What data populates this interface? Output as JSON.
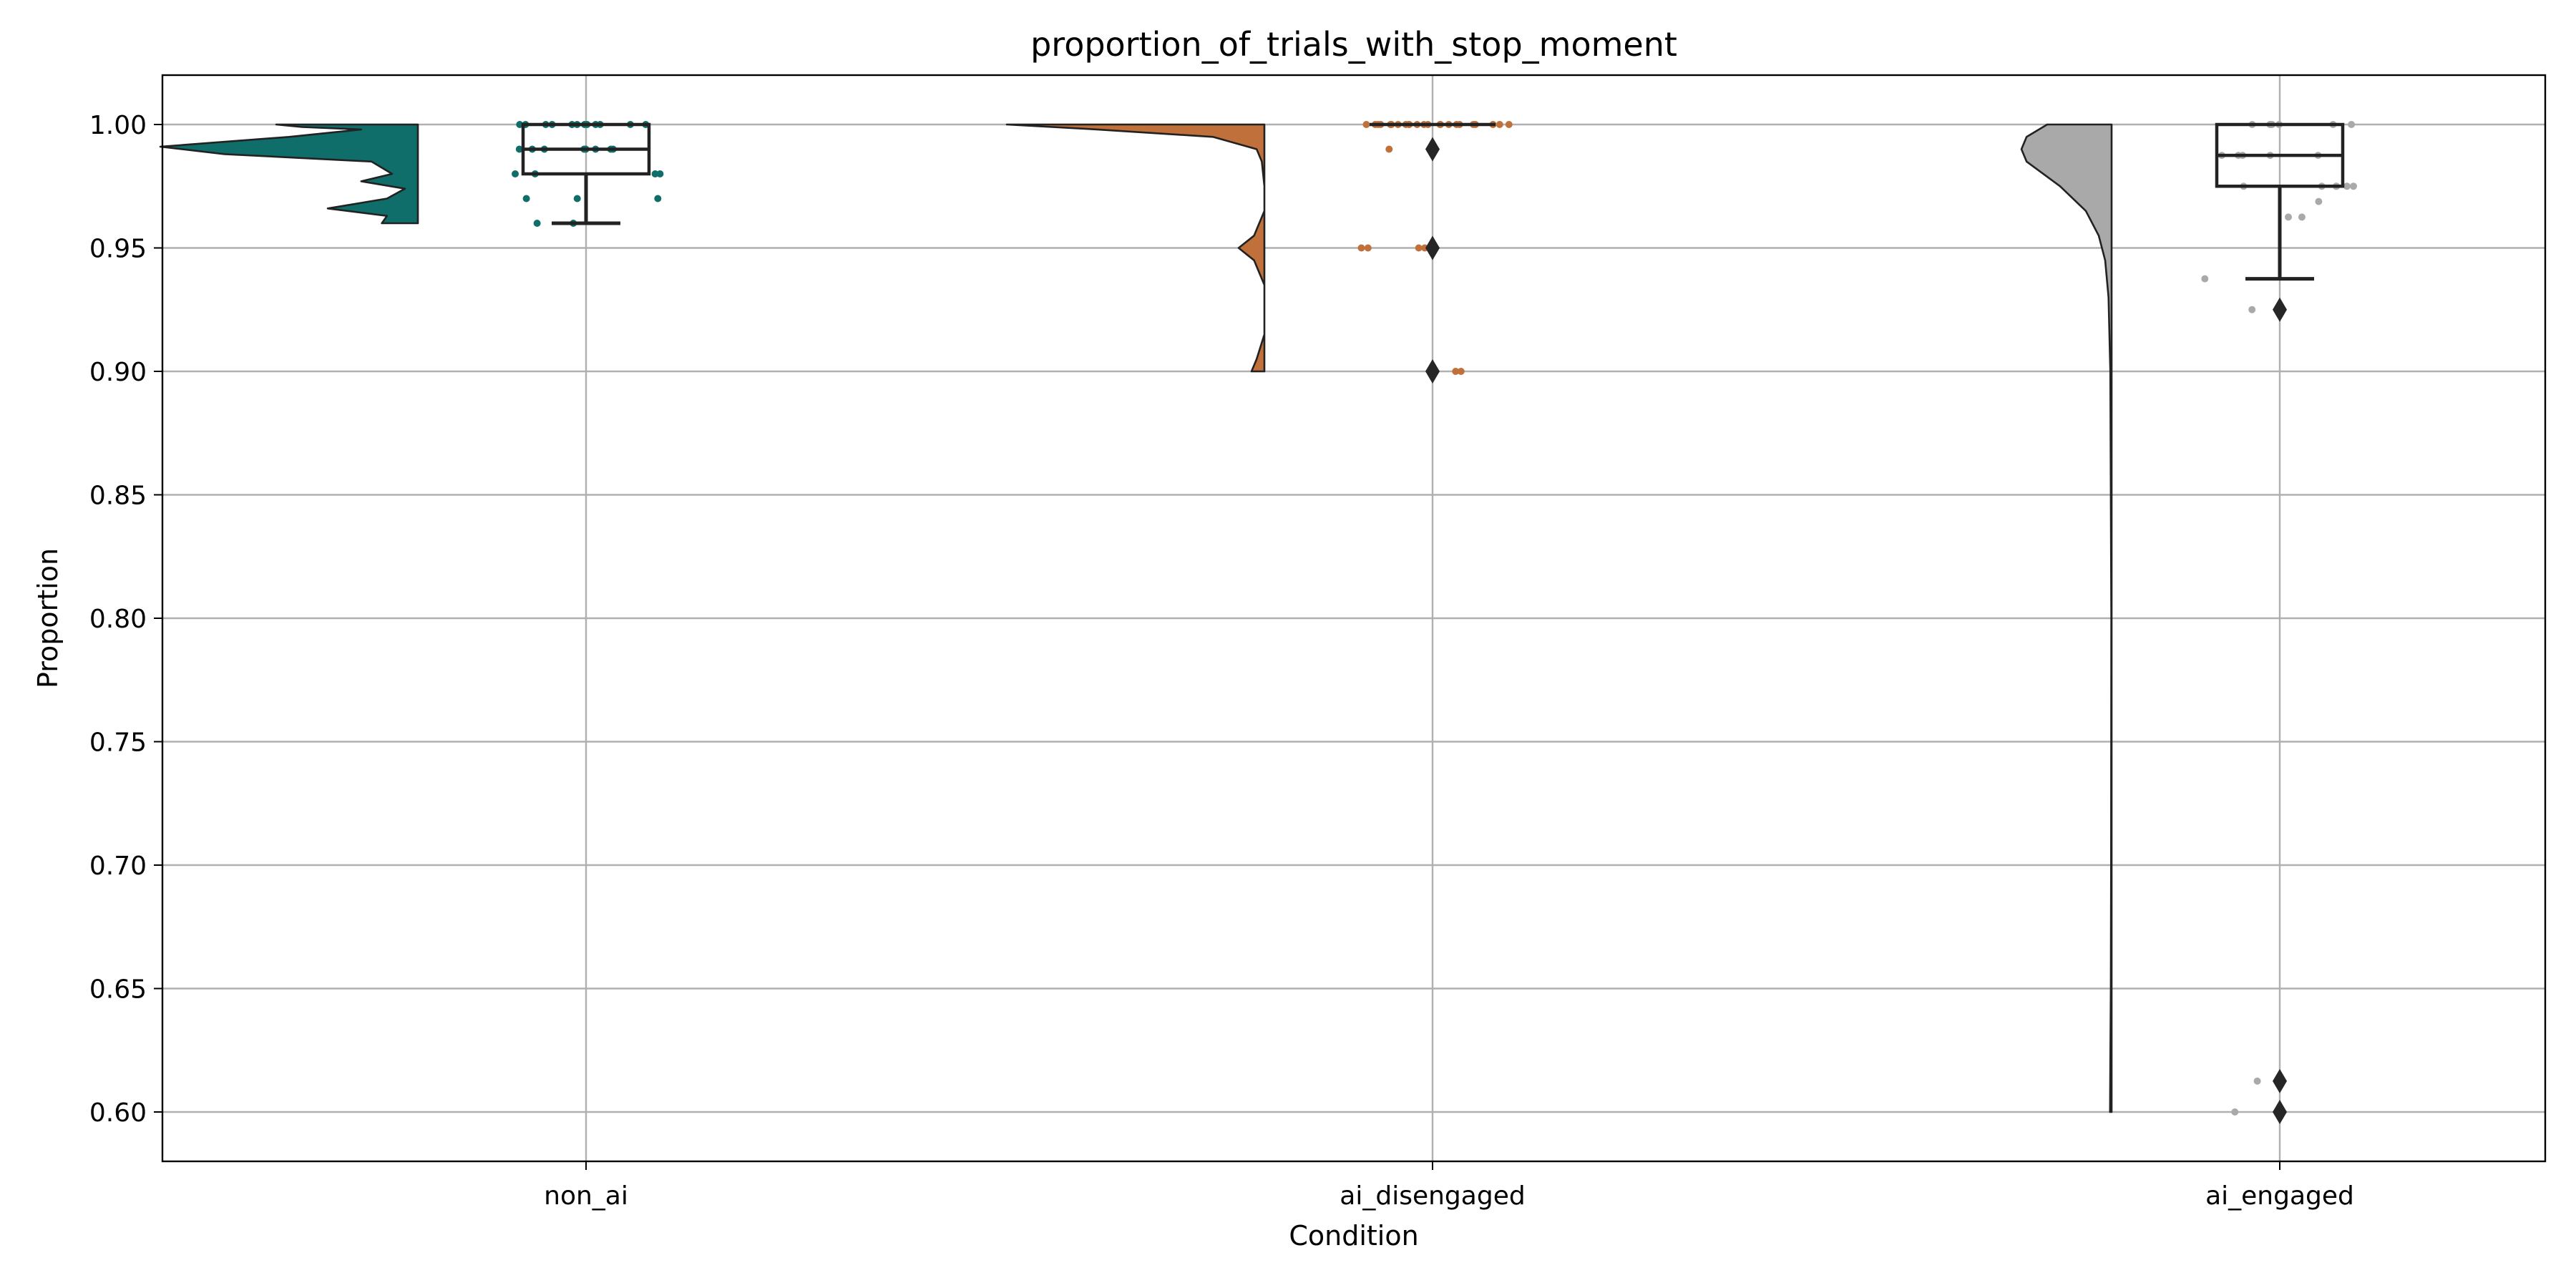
{
  "chart_data": {
    "type": "raincloud",
    "title": "proportion_of_trials_with_stop_moment",
    "xlabel": "Condition",
    "ylabel": "Proportion",
    "ylim": [
      0.58,
      1.02
    ],
    "yticks": [
      "0.60",
      "0.65",
      "0.70",
      "0.75",
      "0.80",
      "0.85",
      "0.90",
      "0.95",
      "1.00"
    ],
    "grid": true,
    "categories": [
      "non_ai",
      "ai_disengaged",
      "ai_engaged"
    ],
    "colors": {
      "non_ai": "#0f6e6a",
      "ai_disengaged": "#c0703a",
      "ai_engaged": "#a9a9a9",
      "box": "#222222",
      "outlier": "#262626"
    },
    "series": [
      {
        "category": "non_ai",
        "box": {
          "min": 0.96,
          "q1": 0.98,
          "median": 0.99,
          "q3": 1.0,
          "max": 1.0
        },
        "outliers": [],
        "density": [
          [
            1.0,
            0.55
          ],
          [
            0.999,
            0.45
          ],
          [
            0.998,
            0.22
          ],
          [
            0.995,
            0.5
          ],
          [
            0.991,
            1.0
          ],
          [
            0.988,
            0.75
          ],
          [
            0.985,
            0.18
          ],
          [
            0.98,
            0.1
          ],
          [
            0.977,
            0.22
          ],
          [
            0.974,
            0.05
          ],
          [
            0.97,
            0.12
          ],
          [
            0.966,
            0.35
          ],
          [
            0.963,
            0.12
          ],
          [
            0.96,
            0.14
          ]
        ],
        "points": [
          1.0,
          1.0,
          1.0,
          1.0,
          1.0,
          1.0,
          1.0,
          1.0,
          1.0,
          1.0,
          1.0,
          1.0,
          0.99,
          0.99,
          0.99,
          0.99,
          0.99,
          0.99,
          0.99,
          0.99,
          0.98,
          0.98,
          0.98,
          0.98,
          0.97,
          0.97,
          0.97,
          0.96,
          0.96
        ]
      },
      {
        "category": "ai_disengaged",
        "box": {
          "min": 1.0,
          "q1": 1.0,
          "median": 1.0,
          "q3": 1.0,
          "max": 1.0
        },
        "outliers": [
          0.99,
          0.95,
          0.9
        ],
        "density": [
          [
            1.0,
            1.0
          ],
          [
            0.998,
            0.65
          ],
          [
            0.995,
            0.2
          ],
          [
            0.99,
            0.03
          ],
          [
            0.985,
            0.01
          ],
          [
            0.975,
            0.0
          ],
          [
            0.965,
            0.0
          ],
          [
            0.955,
            0.04
          ],
          [
            0.95,
            0.1
          ],
          [
            0.945,
            0.04
          ],
          [
            0.935,
            0.0
          ],
          [
            0.915,
            0.0
          ],
          [
            0.905,
            0.03
          ],
          [
            0.9,
            0.05
          ]
        ],
        "points": [
          1.0,
          1.0,
          1.0,
          1.0,
          1.0,
          1.0,
          1.0,
          1.0,
          1.0,
          1.0,
          1.0,
          1.0,
          1.0,
          1.0,
          1.0,
          1.0,
          1.0,
          1.0,
          1.0,
          1.0,
          1.0,
          1.0,
          1.0,
          1.0,
          0.99,
          0.95,
          0.95,
          0.95,
          0.95,
          0.9,
          0.9
        ]
      },
      {
        "category": "ai_engaged",
        "box": {
          "min": 0.9375,
          "q1": 0.975,
          "median": 0.9875,
          "q3": 1.0,
          "max": 1.0
        },
        "outliers": [
          0.925,
          0.6125,
          0.6
        ],
        "density": [
          [
            1.0,
            0.25
          ],
          [
            0.995,
            0.33
          ],
          [
            0.99,
            0.35
          ],
          [
            0.985,
            0.33
          ],
          [
            0.975,
            0.2
          ],
          [
            0.965,
            0.1
          ],
          [
            0.955,
            0.05
          ],
          [
            0.945,
            0.025
          ],
          [
            0.93,
            0.012
          ],
          [
            0.9,
            0.005
          ],
          [
            0.8,
            0.001
          ],
          [
            0.7,
            0.002
          ],
          [
            0.65,
            0.003
          ],
          [
            0.62,
            0.005
          ],
          [
            0.6,
            0.006
          ]
        ],
        "points": [
          1.0,
          1.0,
          1.0,
          1.0,
          1.0,
          1.0,
          1.0,
          0.9875,
          0.9875,
          0.9875,
          0.9875,
          0.9875,
          0.975,
          0.975,
          0.975,
          0.975,
          0.975,
          0.975,
          0.9688,
          0.9625,
          0.9625,
          0.9375,
          0.925,
          0.6125,
          0.6
        ]
      }
    ]
  }
}
